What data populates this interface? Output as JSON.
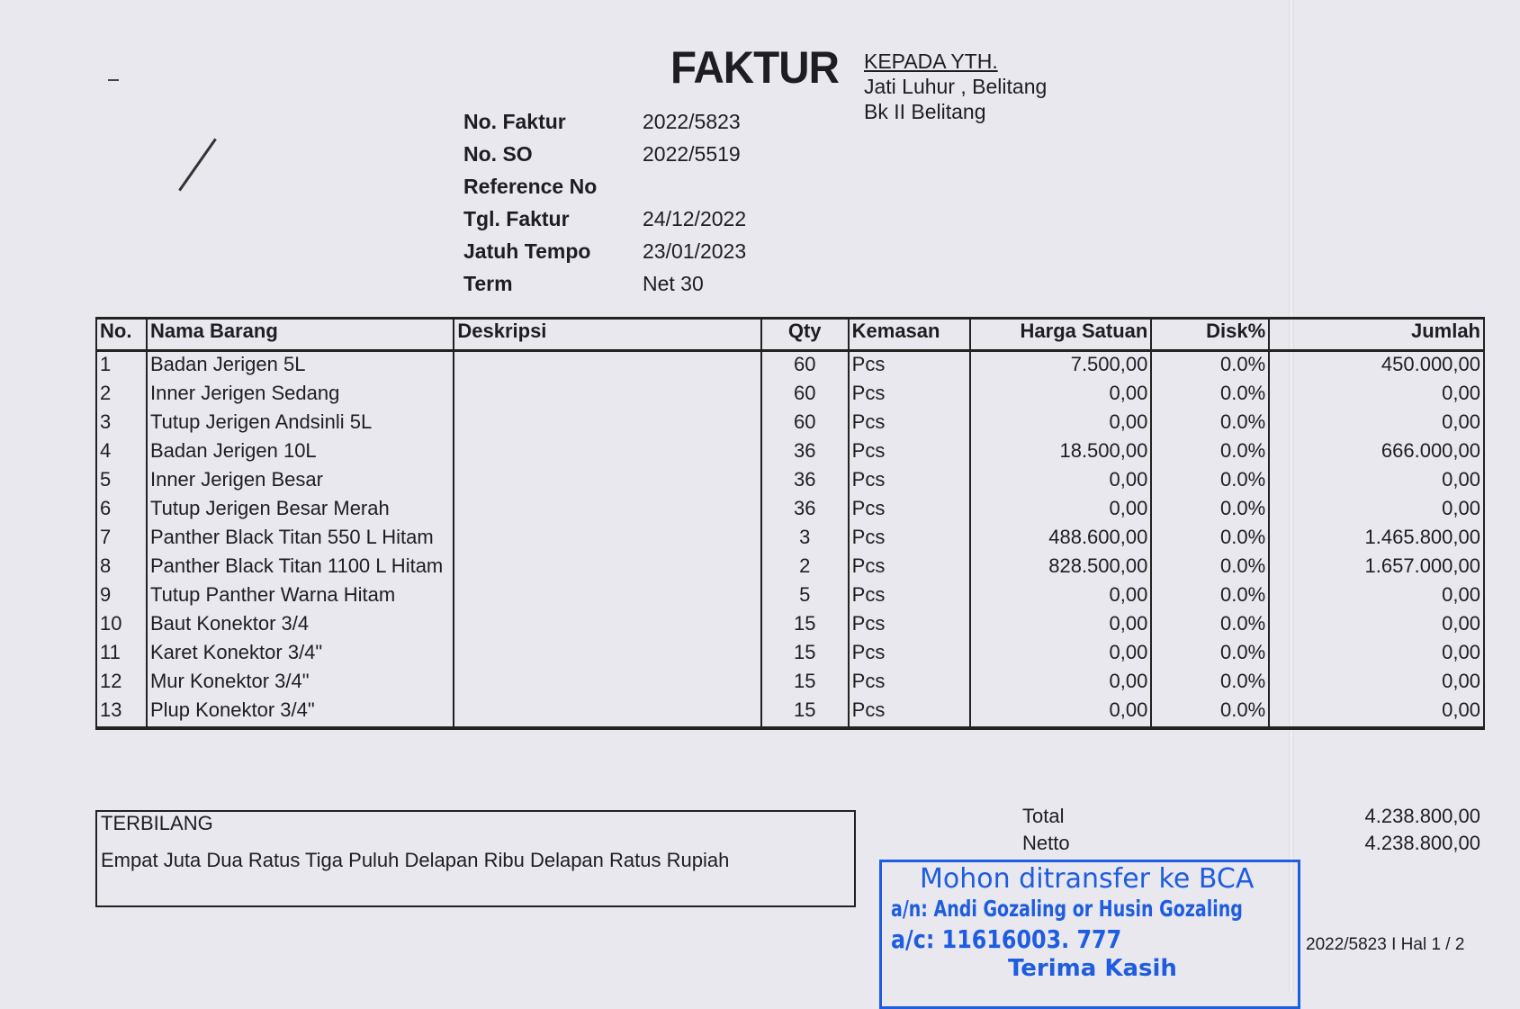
{
  "header": {
    "title": "FAKTUR",
    "recipient_heading": "KEPADA YTH.",
    "recipient_line1": "Jati Luhur , Belitang",
    "recipient_line2": "Bk II Belitang"
  },
  "meta": [
    {
      "label": "No. Faktur",
      "value": "2022/5823"
    },
    {
      "label": "No. SO",
      "value": "2022/5519"
    },
    {
      "label": "Reference No",
      "value": ""
    },
    {
      "label": "Tgl. Faktur",
      "value": "24/12/2022"
    },
    {
      "label": "Jatuh Tempo",
      "value": "23/01/2023"
    },
    {
      "label": "Term",
      "value": "Net 30"
    }
  ],
  "table": {
    "columns": [
      "No.",
      "Nama Barang",
      "Deskripsi",
      "Qty",
      "Kemasan",
      "Harga Satuan",
      "Disk%",
      "Jumlah"
    ],
    "rows": [
      [
        "1",
        "Badan Jerigen 5L",
        "",
        "60",
        "Pcs",
        "7.500,00",
        "0.0%",
        "450.000,00"
      ],
      [
        "2",
        "Inner Jerigen Sedang",
        "",
        "60",
        "Pcs",
        "0,00",
        "0.0%",
        "0,00"
      ],
      [
        "3",
        "Tutup Jerigen Andsinli 5L",
        "",
        "60",
        "Pcs",
        "0,00",
        "0.0%",
        "0,00"
      ],
      [
        "4",
        "Badan Jerigen 10L",
        "",
        "36",
        "Pcs",
        "18.500,00",
        "0.0%",
        "666.000,00"
      ],
      [
        "5",
        "Inner Jerigen Besar",
        "",
        "36",
        "Pcs",
        "0,00",
        "0.0%",
        "0,00"
      ],
      [
        "6",
        "Tutup Jerigen Besar Merah",
        "",
        "36",
        "Pcs",
        "0,00",
        "0.0%",
        "0,00"
      ],
      [
        "7",
        "Panther Black Titan 550 L Hitam",
        "",
        "3",
        "Pcs",
        "488.600,00",
        "0.0%",
        "1.465.800,00"
      ],
      [
        "8",
        "Panther Black Titan 1100 L Hitam",
        "",
        "2",
        "Pcs",
        "828.500,00",
        "0.0%",
        "1.657.000,00"
      ],
      [
        "9",
        "Tutup Panther Warna Hitam",
        "",
        "5",
        "Pcs",
        "0,00",
        "0.0%",
        "0,00"
      ],
      [
        "10",
        "Baut Konektor 3/4",
        "",
        "15",
        "Pcs",
        "0,00",
        "0.0%",
        "0,00"
      ],
      [
        "11",
        "Karet Konektor 3/4\"",
        "",
        "15",
        "Pcs",
        "0,00",
        "0.0%",
        "0,00"
      ],
      [
        "12",
        "Mur Konektor 3/4\"",
        "",
        "15",
        "Pcs",
        "0,00",
        "0.0%",
        "0,00"
      ],
      [
        "13",
        "Plup Konektor 3/4\"",
        "",
        "15",
        "Pcs",
        "0,00",
        "0.0%",
        "0,00"
      ]
    ]
  },
  "terbilang": {
    "label": "TERBILANG",
    "text": "Empat Juta Dua Ratus Tiga Puluh Delapan Ribu Delapan Ratus Rupiah"
  },
  "totals": {
    "total_label": "Total",
    "total_value": "4.238.800,00",
    "netto_label": "Netto",
    "netto_value": "4.238.800,00"
  },
  "stamp": {
    "line1": "Mohon ditransfer ke BCA",
    "line2": "a/n: Andi Gozaling or Husin Gozaling",
    "line3": "a/c: 11616003. 777",
    "line4": "Terima Kasih",
    "color": "#1e5ce0"
  },
  "page_info": "2022/5823 I Hal 1 / 2"
}
